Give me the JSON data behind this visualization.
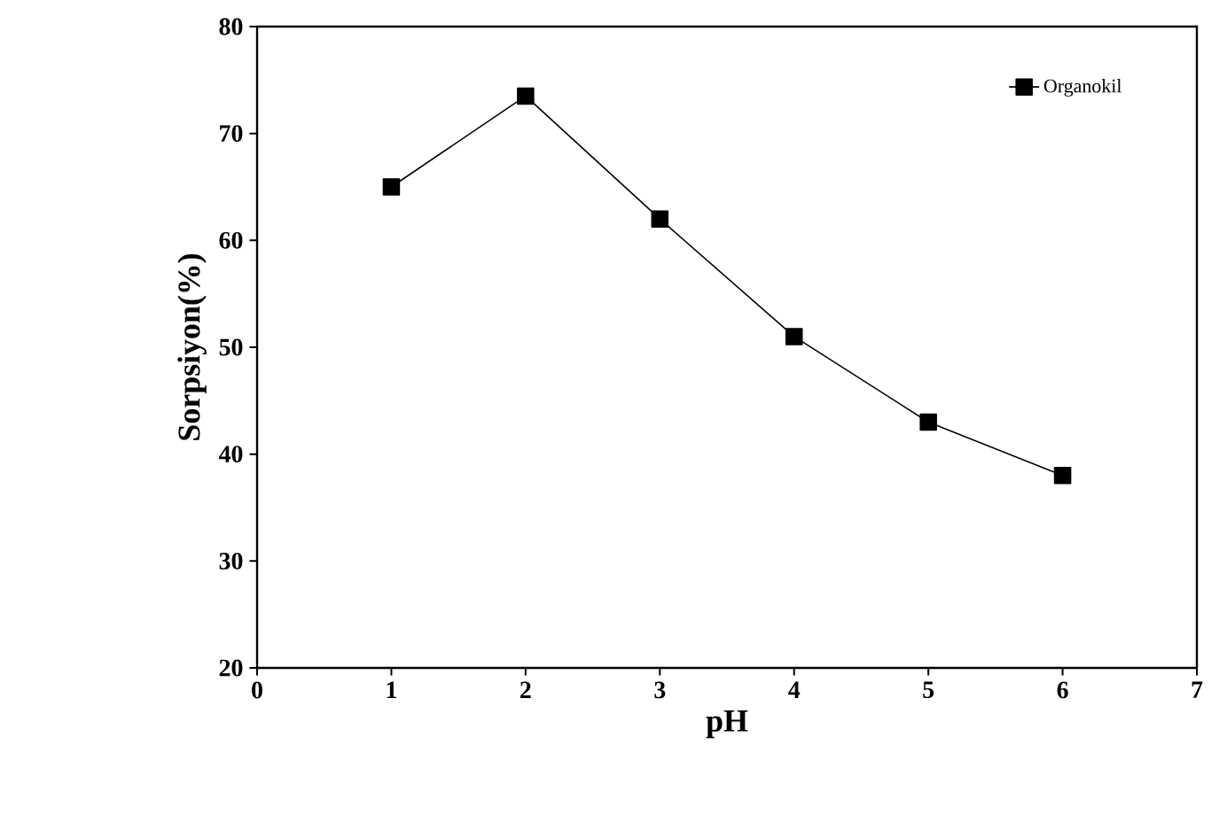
{
  "chart_data": {
    "type": "line",
    "xlabel": "pH",
    "ylabel": "Sorpsiyon(%)",
    "x": [
      1,
      2,
      3,
      4,
      5,
      6
    ],
    "series": [
      {
        "name": "Organokil",
        "color": "#000000",
        "values": [
          65,
          73.5,
          62,
          51,
          43,
          38
        ]
      }
    ],
    "xlim": [
      0,
      7
    ],
    "xticks": [
      0,
      1,
      2,
      3,
      4,
      5,
      6,
      7
    ],
    "ylim": [
      20,
      80
    ],
    "yticks": [
      20,
      30,
      40,
      50,
      60,
      70,
      80
    ],
    "grid": false,
    "legend": "top right",
    "marker": "square",
    "line_style": "solid"
  }
}
